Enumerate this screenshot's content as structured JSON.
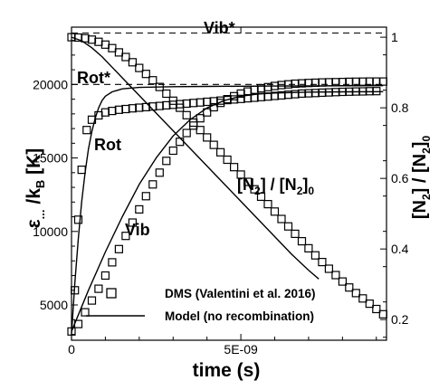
{
  "chart_data": {
    "type": "scatter",
    "x_title": "time (s)",
    "y_title_left_main": "ε",
    "y_title_left_sub1": "...",
    "y_title_left_mid": " /k",
    "y_title_left_sub2": "B",
    "y_title_left_tail": " [K]",
    "y_title_right_a": "[N",
    "y_title_right_a_sub": "2",
    "y_title_right_b": "] / [N",
    "y_title_right_b_sub": "2",
    "y_title_right_c": "]",
    "y_title_right_c_sub": "0",
    "xlim": [
      0,
      9.3e-09
    ],
    "ylim_left": [
      2600,
      23900
    ],
    "ylim_right": [
      0.1415,
      1.0285
    ],
    "x_ticks": [
      {
        "value": 0,
        "label": "0"
      },
      {
        "value": 5e-09,
        "label": "5E-09"
      }
    ],
    "y_ticks_left": [
      {
        "value": 5000,
        "label": "5000"
      },
      {
        "value": 10000,
        "label": "10000"
      },
      {
        "value": 15000,
        "label": "15000"
      },
      {
        "value": 20000,
        "label": "20000"
      }
    ],
    "y_ticks_right": [
      {
        "value": 0.2,
        "label": "0.2"
      },
      {
        "value": 0.4,
        "label": "0.4"
      },
      {
        "value": 0.6,
        "label": "0.6"
      },
      {
        "value": 0.8,
        "label": "0.8"
      },
      {
        "value": 1,
        "label": "1"
      }
    ],
    "annotations": {
      "vib_star": "Vib*",
      "rot_star": "Rot*",
      "rot": "Rot",
      "vib": "Vib",
      "conc_a": "[N",
      "conc_a_sub": "2",
      "conc_b": "] / [N",
      "conc_b_sub": "2",
      "conc_c": "]",
      "conc_c_sub": "0"
    },
    "reference_lines": [
      {
        "name": "Vib*",
        "y": 23500,
        "style": "dashed"
      },
      {
        "name": "Rot*",
        "y": 20000,
        "style": "dashed"
      }
    ],
    "legend": {
      "position": "bottom-right",
      "entries": [
        {
          "label": "DMS (Valentini et al. 2016)",
          "marker": "open-square"
        },
        {
          "label": "Model (no recombination)",
          "marker": "solid-line"
        }
      ]
    },
    "series": [
      {
        "name": "DMS (Valentini et al. 2016)",
        "curve": "Rot",
        "axis": "left",
        "marker": "open-square",
        "x": [
          1e-10,
          2e-10,
          3e-10,
          4.5e-10,
          6e-10,
          8e-10,
          1e-09,
          1.2e-09,
          1.4e-09,
          1.6e-09,
          1.8e-09,
          2e-09,
          2.2e-09,
          2.4e-09,
          2.6e-09,
          2.8e-09,
          3e-09,
          3.2e-09,
          3.4e-09,
          3.6e-09,
          3.8e-09,
          4e-09,
          4.2e-09,
          4.4e-09,
          4.6e-09,
          4.8e-09,
          5e-09,
          5.2e-09,
          5.4e-09,
          5.6e-09,
          5.8e-09,
          6e-09,
          6.2e-09,
          6.4e-09,
          6.6e-09,
          6.8e-09,
          7e-09,
          7.2e-09,
          7.4e-09,
          7.6e-09,
          7.8e-09,
          8e-09,
          8.2e-09,
          8.4e-09,
          8.6e-09,
          8.8e-09,
          9e-09
        ],
        "y": [
          6000,
          10800,
          14200,
          16900,
          17600,
          17900,
          18100,
          18200,
          18280,
          18330,
          18380,
          18420,
          18460,
          18500,
          18540,
          18580,
          18620,
          18660,
          18700,
          18740,
          18780,
          18820,
          18860,
          18900,
          18940,
          18980,
          19020,
          19060,
          19100,
          19140,
          19180,
          19220,
          19260,
          19300,
          19340,
          19380,
          19400,
          19420,
          19440,
          19460,
          19480,
          19500,
          19510,
          19520,
          19530,
          19540,
          19550
        ]
      },
      {
        "name": "DMS (Valentini et al. 2016)",
        "curve": "Vib",
        "axis": "left",
        "marker": "open-square",
        "x": [
          0,
          2e-10,
          4e-10,
          6e-10,
          8e-10,
          1e-09,
          1.2e-09,
          1.4e-09,
          1.6e-09,
          1.8e-09,
          2e-09,
          2.2e-09,
          2.4e-09,
          2.6e-09,
          2.8e-09,
          3e-09,
          3.2e-09,
          3.4e-09,
          3.6e-09,
          3.8e-09,
          4e-09,
          4.2e-09,
          4.4e-09,
          4.6e-09,
          4.8e-09,
          5e-09,
          5.2e-09,
          5.4e-09,
          5.6e-09,
          5.8e-09,
          6e-09,
          6.2e-09,
          6.4e-09,
          6.6e-09,
          6.8e-09,
          7e-09,
          7.2e-09,
          7.4e-09,
          7.6e-09,
          7.8e-09,
          8e-09,
          8.2e-09,
          8.4e-09,
          8.6e-09,
          8.8e-09,
          9e-09,
          9.2e-09
        ],
        "y": [
          3200,
          3700,
          4500,
          5300,
          6100,
          7000,
          7900,
          8800,
          9700,
          10600,
          11500,
          12400,
          13200,
          14000,
          14800,
          15500,
          16100,
          16700,
          17200,
          17700,
          18100,
          18450,
          18750,
          19000,
          19200,
          19380,
          19520,
          19640,
          19740,
          19820,
          19900,
          19960,
          20010,
          20050,
          20080,
          20100,
          20120,
          20140,
          20150,
          20160,
          20170,
          20180,
          20190,
          20195,
          20200,
          20200,
          20200
        ]
      },
      {
        "name": "DMS (Valentini et al. 2016)",
        "curve": "[N2]/[N2]0",
        "axis": "right",
        "marker": "open-square",
        "x": [
          0,
          2e-10,
          4e-10,
          6e-10,
          8e-10,
          1e-09,
          1.2e-09,
          1.4e-09,
          1.6e-09,
          1.8e-09,
          2e-09,
          2.2e-09,
          2.4e-09,
          2.6e-09,
          2.8e-09,
          3e-09,
          3.2e-09,
          3.4e-09,
          3.6e-09,
          3.8e-09,
          4e-09,
          4.2e-09,
          4.4e-09,
          4.6e-09,
          4.8e-09,
          5e-09,
          5.2e-09,
          5.4e-09,
          5.6e-09,
          5.8e-09,
          6e-09,
          6.2e-09,
          6.4e-09,
          6.6e-09,
          6.8e-09,
          7e-09,
          7.2e-09,
          7.4e-09,
          7.6e-09,
          7.8e-09,
          8e-09,
          8.2e-09,
          8.4e-09,
          8.6e-09,
          8.8e-09,
          9e-09,
          9.2e-09
        ],
        "y": [
          1.0,
          0.999,
          0.997,
          0.993,
          0.987,
          0.979,
          0.969,
          0.957,
          0.944,
          0.929,
          0.913,
          0.896,
          0.878,
          0.859,
          0.84,
          0.82,
          0.8,
          0.779,
          0.758,
          0.737,
          0.716,
          0.695,
          0.674,
          0.653,
          0.632,
          0.611,
          0.59,
          0.569,
          0.548,
          0.527,
          0.506,
          0.485,
          0.464,
          0.443,
          0.422,
          0.402,
          0.382,
          0.363,
          0.344,
          0.326,
          0.308,
          0.291,
          0.275,
          0.26,
          0.245,
          0.23,
          0.215
        ]
      },
      {
        "name": "Model (no recombination)",
        "curve": "Rot",
        "axis": "left",
        "marker": "solid-line",
        "x": [
          0,
          1e-10,
          2e-10,
          3e-10,
          4e-10,
          5e-10,
          6e-10,
          7e-10,
          8e-10,
          9e-10,
          1e-09,
          1.2e-09,
          1.5e-09,
          2e-09,
          3e-09,
          4e-09,
          5e-09,
          6e-09,
          7e-09,
          8e-09,
          9.2e-09
        ],
        "y": [
          3000,
          6500,
          9500,
          12000,
          14000,
          15600,
          16800,
          17700,
          18400,
          18900,
          19200,
          19500,
          19700,
          19800,
          19850,
          19870,
          19880,
          19890,
          19900,
          19910,
          19920
        ]
      },
      {
        "name": "Model (no recombination)",
        "curve": "Vib",
        "axis": "left",
        "marker": "solid-line",
        "x": [
          0,
          5e-10,
          1e-09,
          1.5e-09,
          2e-09,
          2.5e-09,
          3e-09,
          3.5e-09,
          4e-09,
          4.5e-09,
          5e-09,
          5.5e-09,
          6e-09,
          7e-09,
          8e-09,
          9.2e-09
        ],
        "y": [
          3200,
          6000,
          8600,
          11000,
          13200,
          15000,
          16500,
          17600,
          18400,
          18900,
          19200,
          19350,
          19420,
          19480,
          19500,
          19510
        ]
      },
      {
        "name": "Model (no recombination)",
        "curve": "[N2]/[N2]0",
        "axis": "right",
        "marker": "solid-line",
        "x": [
          0,
          3e-10,
          6e-10,
          9e-10,
          1.2e-09,
          1.5e-09,
          2e-09,
          2.5e-09,
          3e-09,
          3.5e-09,
          4e-09,
          4.5e-09,
          5e-09,
          5.5e-09,
          6e-09,
          6.5e-09,
          7e-09,
          7.3e-09
        ],
        "y": [
          1.0,
          0.99,
          0.97,
          0.945,
          0.915,
          0.885,
          0.835,
          0.785,
          0.735,
          0.685,
          0.635,
          0.585,
          0.535,
          0.485,
          0.435,
          0.385,
          0.34,
          0.315
        ]
      }
    ]
  }
}
